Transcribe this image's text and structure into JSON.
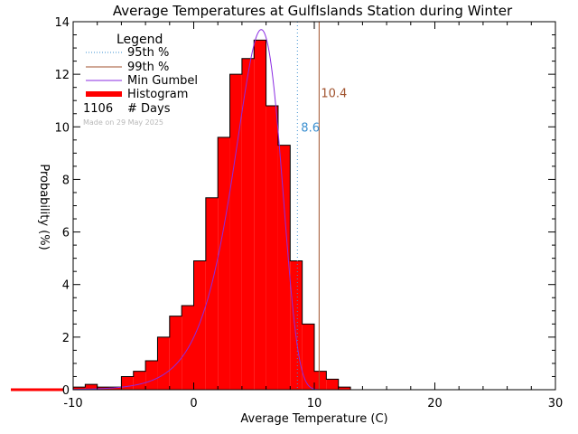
{
  "chart_data": {
    "type": "bar",
    "title": "Average Temperatures at GulfIslands Station during Winter",
    "xlabel": "Average Temperature (C)",
    "ylabel": "Probability  (%)",
    "xlim": [
      -10,
      30
    ],
    "ylim": [
      0,
      14
    ],
    "xticks": [
      -10,
      0,
      10,
      20,
      30
    ],
    "yticks": [
      0,
      2,
      4,
      6,
      8,
      10,
      12,
      14
    ],
    "legend": {
      "title": "Legend",
      "position": "top-left",
      "entries": [
        {
          "label": "95th %",
          "color": "#3a8fd0",
          "style": "dotted"
        },
        {
          "label": "99th %",
          "color": "#a0522d",
          "style": "solid"
        },
        {
          "label": "Min Gumbel",
          "color": "#8a2be2",
          "style": "solid"
        },
        {
          "label": "Histogram",
          "color": "#ff0000",
          "style": "thick"
        }
      ],
      "days_count": "1106",
      "days_label": "# Days"
    },
    "credit": "Made on 29 May 2025",
    "p95": {
      "value": 8.6,
      "label": "8.6",
      "color": "#3a8fd0"
    },
    "p99": {
      "value": 10.4,
      "label": "10.4",
      "color": "#a0522d"
    },
    "histogram": {
      "bin_width": 1,
      "color": "#ff0000",
      "bins": [
        {
          "x0": -11,
          "value": 0.1
        },
        {
          "x0": -10,
          "value": 0.1
        },
        {
          "x0": -9,
          "value": 0.2
        },
        {
          "x0": -8,
          "value": 0.1
        },
        {
          "x0": -7,
          "value": 0.1
        },
        {
          "x0": -6,
          "value": 0.5
        },
        {
          "x0": -5,
          "value": 0.7
        },
        {
          "x0": -4,
          "value": 1.1
        },
        {
          "x0": -3,
          "value": 2.0
        },
        {
          "x0": -2,
          "value": 2.8
        },
        {
          "x0": -1,
          "value": 3.2
        },
        {
          "x0": 0,
          "value": 4.9
        },
        {
          "x0": 1,
          "value": 7.3
        },
        {
          "x0": 2,
          "value": 9.6
        },
        {
          "x0": 3,
          "value": 12.0
        },
        {
          "x0": 4,
          "value": 12.6
        },
        {
          "x0": 5,
          "value": 13.3
        },
        {
          "x0": 6,
          "value": 10.8
        },
        {
          "x0": 7,
          "value": 9.3
        },
        {
          "x0": 8,
          "value": 4.9
        },
        {
          "x0": 9,
          "value": 2.5
        },
        {
          "x0": 10,
          "value": 0.7
        },
        {
          "x0": 11,
          "value": 0.4
        },
        {
          "x0": 12,
          "value": 0.1
        }
      ]
    },
    "gumbel": {
      "color": "#8a2be2",
      "mode": 5.6,
      "scale": 1.95,
      "peak": 13.7,
      "x_range": [
        -11,
        10.5
      ]
    }
  }
}
